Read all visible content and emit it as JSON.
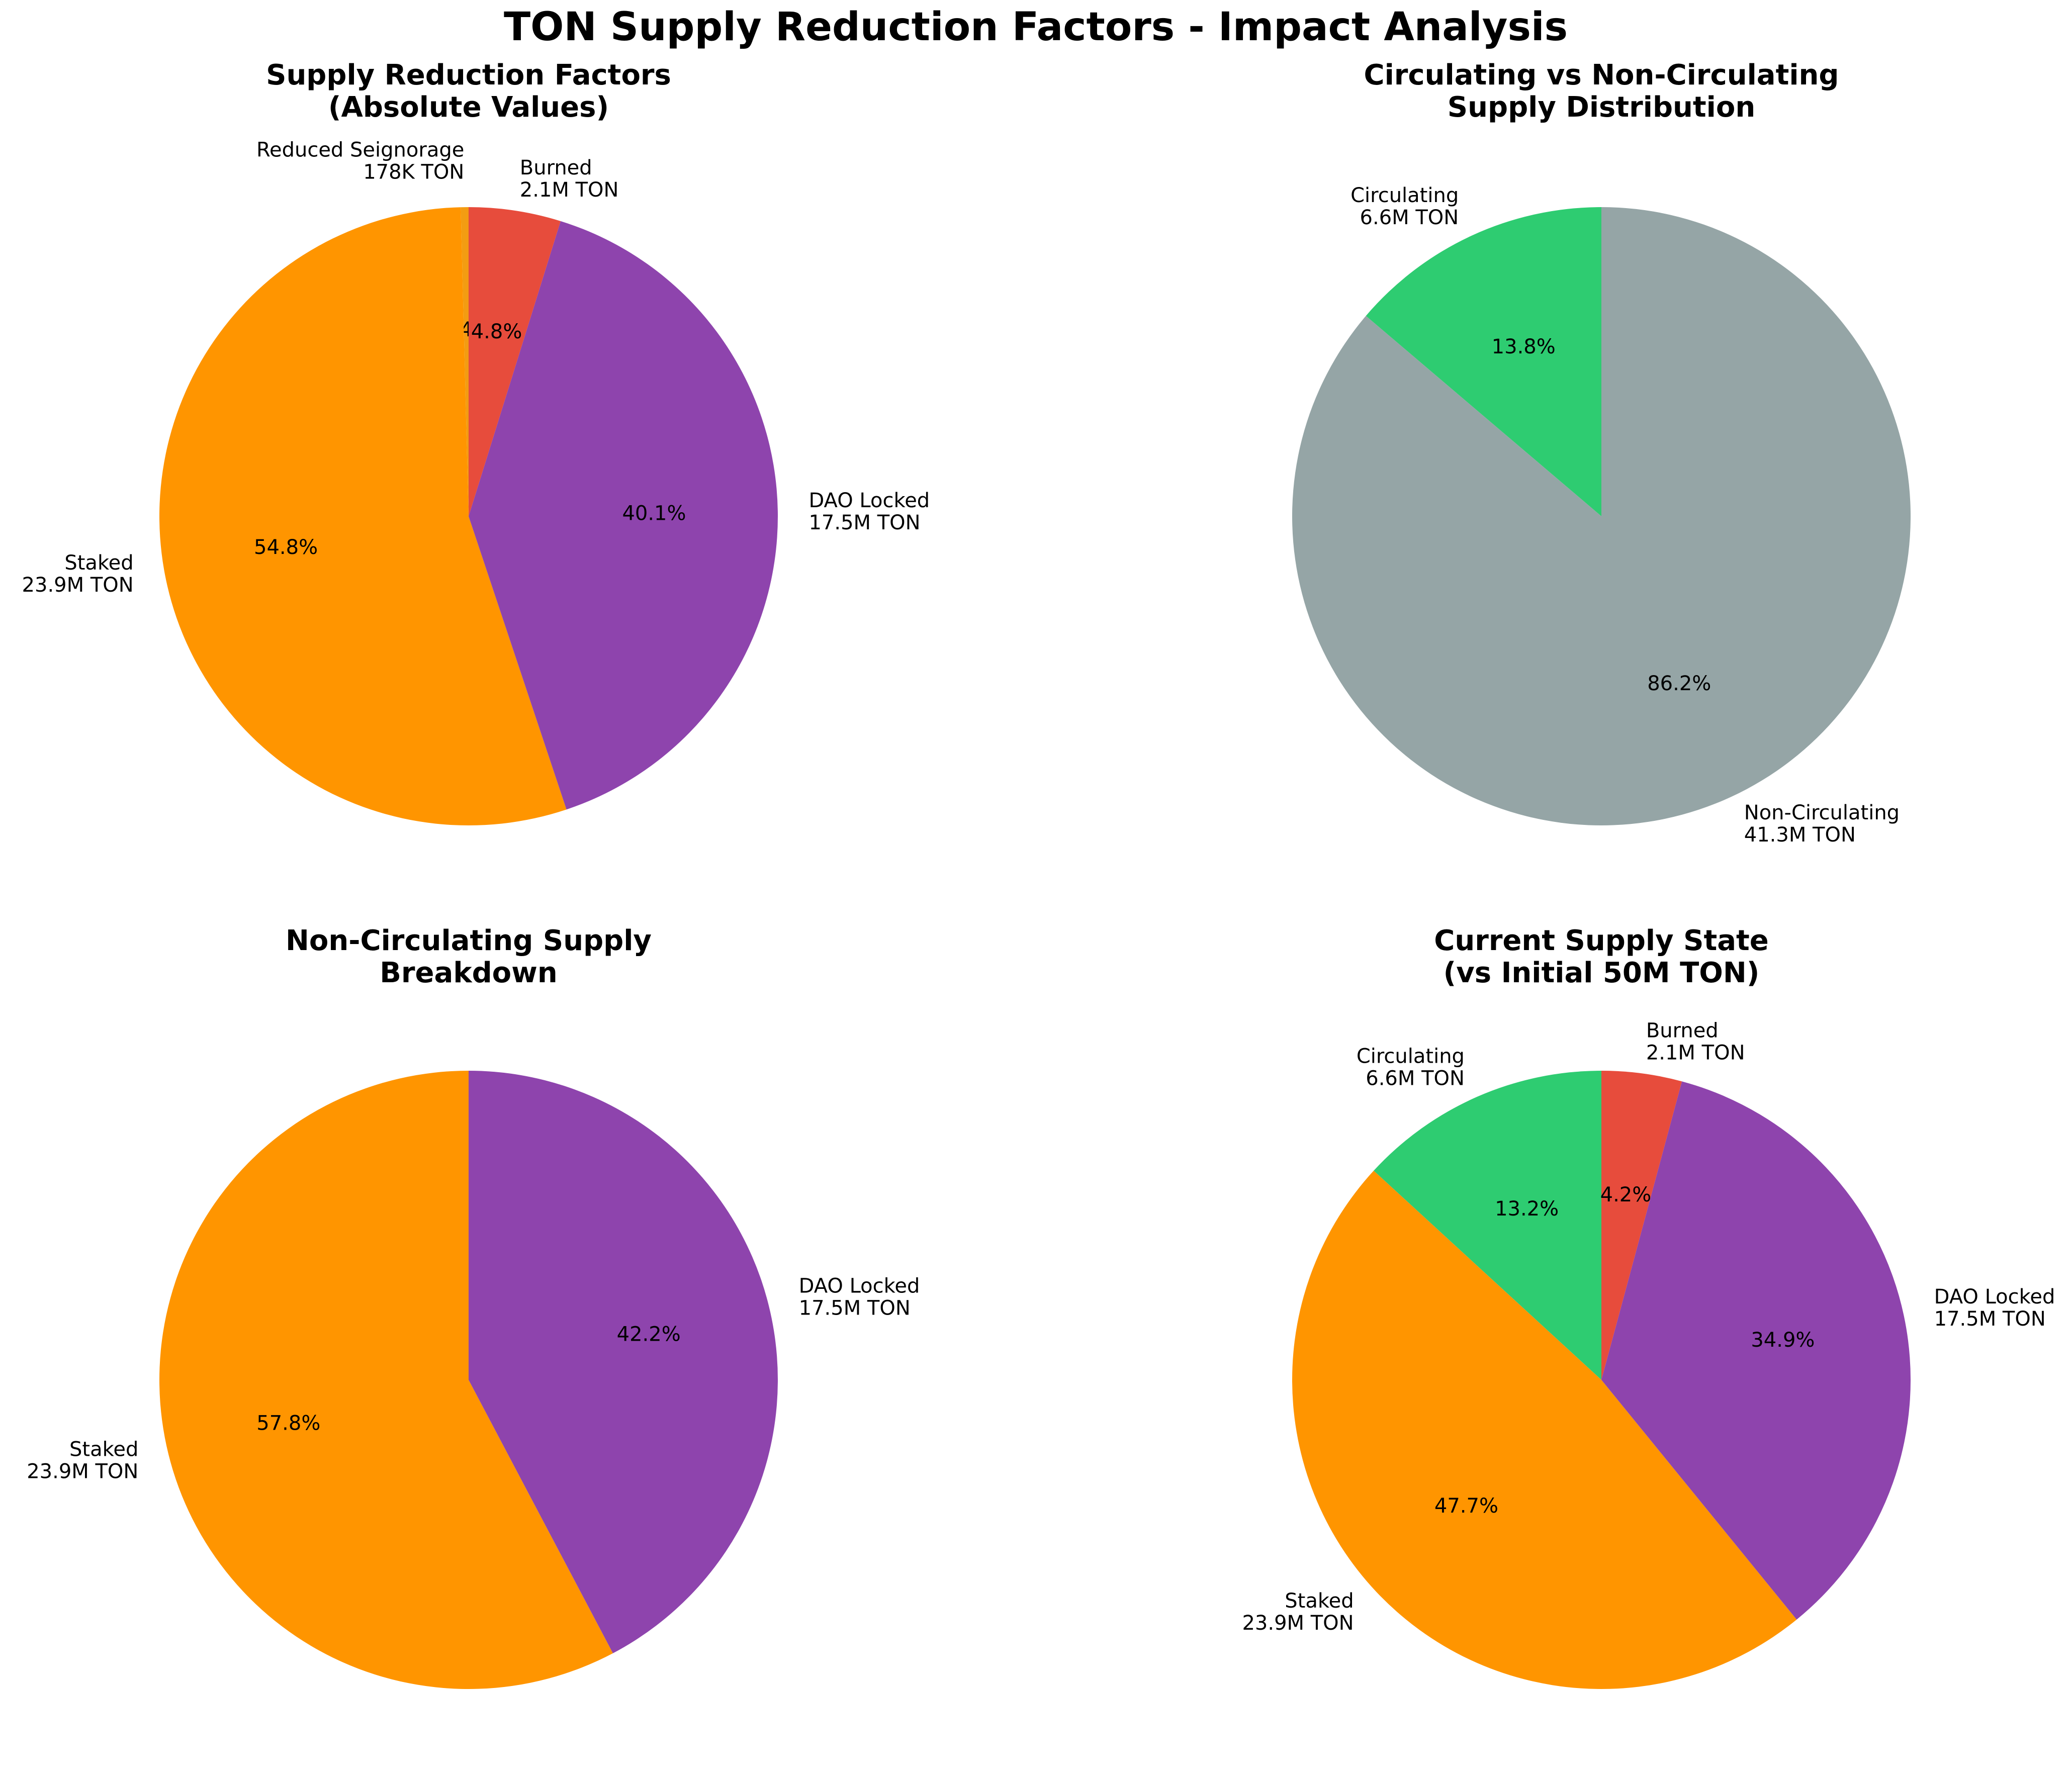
{
  "figure": {
    "suptitle": "TON Supply Reduction Factors - Impact Analysis"
  },
  "chart_data": [
    {
      "type": "pie",
      "title": "Supply Reduction Factors\n(Absolute Values)",
      "slices": [
        {
          "label": "Reduced Seignorage\n178K TON",
          "value": 0.178,
          "pct": "0.4%",
          "color": "#f39c12"
        },
        {
          "label": "Staked\n23.9M TON",
          "value": 23.9,
          "pct": "54.8%",
          "color": "#ff9500"
        },
        {
          "label": "DAO Locked\n17.5M TON",
          "value": 17.5,
          "pct": "40.1%",
          "color": "#8e44ad"
        },
        {
          "label": "Burned\n2.1M TON",
          "value": 2.1,
          "pct": "4.8%",
          "color": "#e74c3c"
        }
      ]
    },
    {
      "type": "pie",
      "title": "Circulating vs Non-Circulating\nSupply Distribution",
      "slices": [
        {
          "label": "Circulating\n6.6M TON",
          "value": 6.6,
          "pct": "13.8%",
          "color": "#2ecc71"
        },
        {
          "label": "Non-Circulating\n41.3M TON",
          "value": 41.3,
          "pct": "86.2%",
          "color": "#95a5a6"
        }
      ]
    },
    {
      "type": "pie",
      "title": "Non-Circulating Supply\nBreakdown",
      "slices": [
        {
          "label": "Staked\n23.9M TON",
          "value": 23.9,
          "pct": "57.8%",
          "color": "#ff9500"
        },
        {
          "label": "DAO Locked\n17.5M TON",
          "value": 17.5,
          "pct": "42.2%",
          "color": "#8e44ad"
        }
      ]
    },
    {
      "type": "pie",
      "title": "Current Supply State\n(vs Initial 50M TON)",
      "slices": [
        {
          "label": "Circulating\n6.6M TON",
          "value": 6.6,
          "pct": "13.2%",
          "color": "#2ecc71"
        },
        {
          "label": "Staked\n23.9M TON",
          "value": 23.9,
          "pct": "47.7%",
          "color": "#ff9500"
        },
        {
          "label": "DAO Locked\n17.5M TON",
          "value": 17.5,
          "pct": "34.9%",
          "color": "#8e44ad"
        },
        {
          "label": "Burned\n2.1M TON",
          "value": 2.1,
          "pct": "4.2%",
          "color": "#e74c3c"
        }
      ]
    }
  ]
}
